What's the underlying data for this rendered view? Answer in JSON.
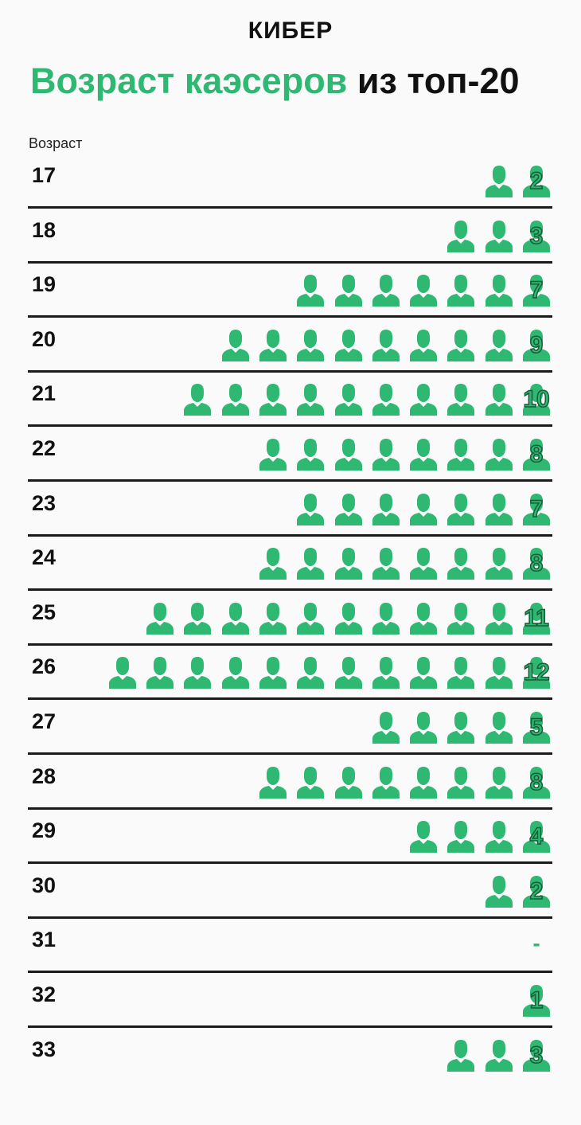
{
  "header": {
    "logo": "КИБЕР",
    "title_green": "Возраст каэсеров",
    "title_black": "из топ-20"
  },
  "colors": {
    "accent": "#2eb872",
    "text": "#111111",
    "line": "#1a1a1a"
  },
  "icon_name": "person-icon",
  "chart_data": {
    "type": "pictogram",
    "ylabel": "Возраст",
    "categories": [
      "17",
      "18",
      "19",
      "20",
      "21",
      "22",
      "23",
      "24",
      "25",
      "26",
      "27",
      "28",
      "29",
      "30",
      "31",
      "32",
      "33"
    ],
    "values": [
      2,
      3,
      7,
      9,
      10,
      8,
      7,
      8,
      11,
      12,
      5,
      8,
      4,
      2,
      0,
      1,
      3
    ],
    "value_labels": [
      "2",
      "3",
      "7",
      "9",
      "10",
      "8",
      "7",
      "8",
      "11",
      "12",
      "5",
      "8",
      "4",
      "2",
      "-",
      "1",
      "3"
    ]
  }
}
